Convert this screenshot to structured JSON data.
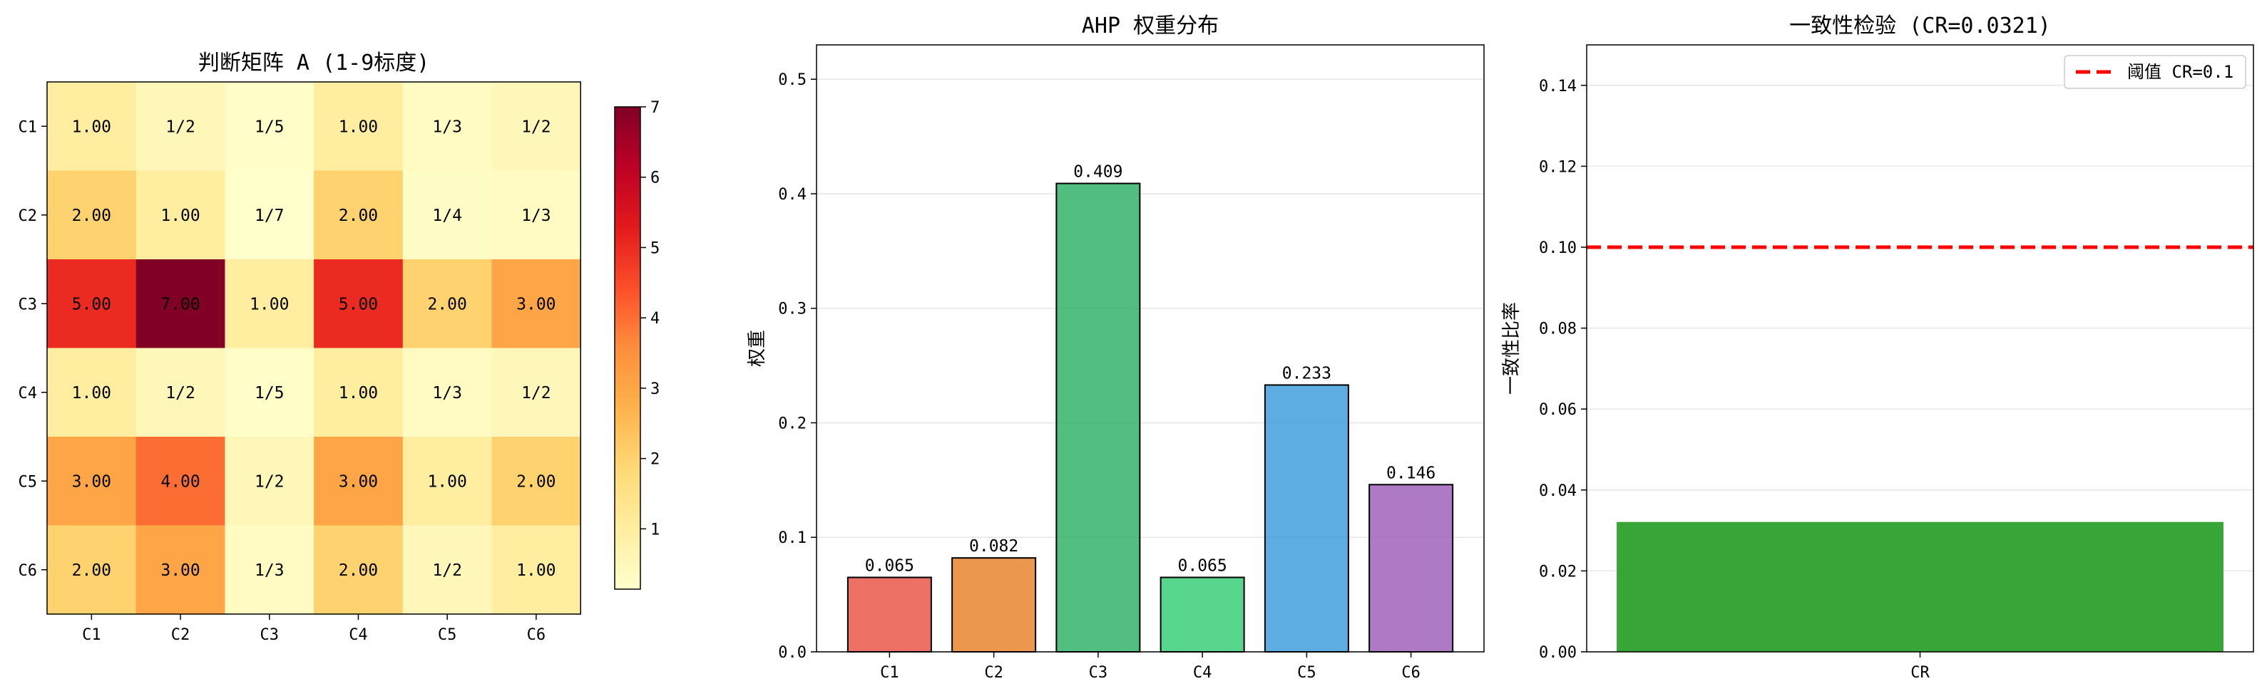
{
  "chart_data": [
    {
      "type": "heatmap",
      "title": "判断矩阵 A (1-9标度)",
      "row_labels": [
        "C1",
        "C2",
        "C3",
        "C4",
        "C5",
        "C6"
      ],
      "col_labels": [
        "C1",
        "C2",
        "C3",
        "C4",
        "C5",
        "C6"
      ],
      "values": [
        [
          1,
          0.5,
          0.2,
          1,
          0.3333,
          0.5
        ],
        [
          2,
          1,
          0.142857,
          2,
          0.25,
          0.3333
        ],
        [
          5,
          7,
          1,
          5,
          2,
          3
        ],
        [
          1,
          0.5,
          0.2,
          1,
          0.3333,
          0.5
        ],
        [
          3,
          4,
          0.5,
          3,
          1,
          2
        ],
        [
          2,
          3,
          0.3333,
          2,
          0.5,
          1
        ]
      ],
      "cell_labels": [
        [
          "1.00",
          "1/2",
          "1/5",
          "1.00",
          "1/3",
          "1/2"
        ],
        [
          "2.00",
          "1.00",
          "1/7",
          "2.00",
          "1/4",
          "1/3"
        ],
        [
          "5.00",
          "7.00",
          "1.00",
          "5.00",
          "2.00",
          "3.00"
        ],
        [
          "1.00",
          "1/2",
          "1/5",
          "1.00",
          "1/3",
          "1/2"
        ],
        [
          "3.00",
          "4.00",
          "1/2",
          "3.00",
          "1.00",
          "2.00"
        ],
        [
          "2.00",
          "3.00",
          "1/3",
          "2.00",
          "1/2",
          "1.00"
        ]
      ],
      "colormap": "YlOrRd",
      "colorbar": {
        "vmin": 0.142857,
        "vmax": 7,
        "ticks": [
          "1",
          "2",
          "3",
          "4",
          "5",
          "6",
          "7"
        ]
      }
    },
    {
      "type": "bar",
      "title": "AHP 权重分布",
      "categories": [
        "C1",
        "C2",
        "C3",
        "C4",
        "C5",
        "C6"
      ],
      "values": [
        0.065,
        0.082,
        0.409,
        0.065,
        0.233,
        0.146
      ],
      "value_labels": [
        "0.065",
        "0.082",
        "0.409",
        "0.065",
        "0.233",
        "0.146"
      ],
      "colors": [
        "#e74c3c",
        "#e67e22",
        "#27ae60",
        "#2ecc71",
        "#3498db",
        "#9b59b6"
      ],
      "ylabel": "权重",
      "ylim": [
        0,
        0.53
      ],
      "yticks": [
        "0.0",
        "0.1",
        "0.2",
        "0.3",
        "0.4",
        "0.5"
      ],
      "grid": "y"
    },
    {
      "type": "bar",
      "title": "一致性检验 (CR=0.0321)",
      "categories": [
        "CR"
      ],
      "values": [
        0.0321
      ],
      "colors": [
        "#2ca02c"
      ],
      "ylabel": "一致性比率",
      "ylim": [
        0,
        0.15
      ],
      "yticks": [
        "0.00",
        "0.02",
        "0.04",
        "0.06",
        "0.08",
        "0.10",
        "0.12",
        "0.14"
      ],
      "threshold": {
        "value": 0.1,
        "label": "阈值 CR=0.1",
        "color": "#ff0000"
      },
      "legend": "top-right",
      "grid": "y"
    }
  ]
}
